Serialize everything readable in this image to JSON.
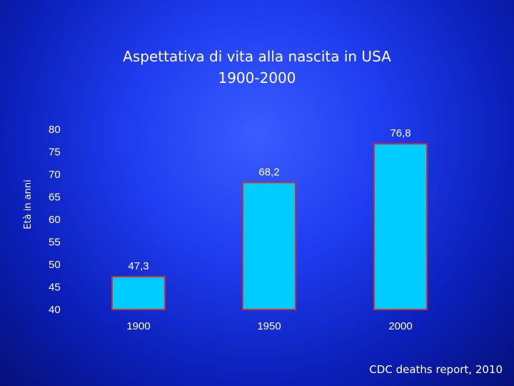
{
  "chart_data": {
    "type": "bar",
    "title_lines": [
      "Aspettativa di vita alla nascita in USA",
      "1900-2000"
    ],
    "ylabel": "Età in anni",
    "categories": [
      "1900",
      "1950",
      "2000"
    ],
    "values": [
      47.3,
      68.2,
      76.8
    ],
    "value_labels": [
      "47,3",
      "68,2",
      "76,8"
    ],
    "yticks": [
      40,
      45,
      50,
      55,
      60,
      65,
      70,
      75,
      80
    ],
    "ylim": [
      40,
      80
    ],
    "grid": false,
    "bar_color": "#00ccff",
    "bar_border_color": "#c8303a"
  },
  "source_note": "CDC deaths report, 2010"
}
